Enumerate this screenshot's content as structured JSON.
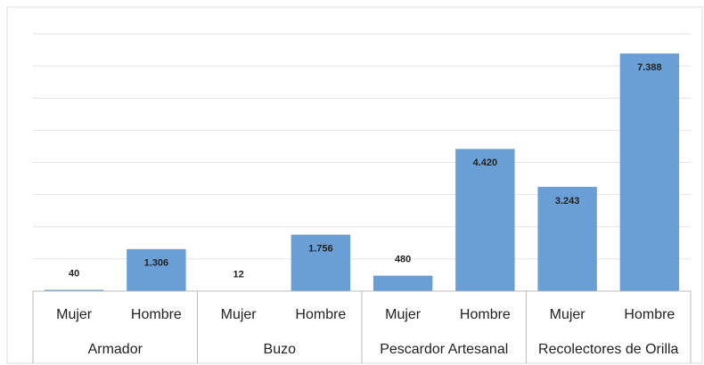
{
  "chart_data": {
    "type": "bar",
    "categories": [
      "Mujer",
      "Hombre",
      "Mujer",
      "Hombre",
      "Mujer",
      "Hombre",
      "Mujer",
      "Hombre"
    ],
    "groups": [
      "Armador",
      "Buzo",
      "Pescardor Artesanal",
      "Recolectores de Orilla"
    ],
    "values": [
      40,
      1306,
      12,
      1756,
      480,
      4420,
      3243,
      7388
    ],
    "value_labels": [
      "40",
      "1.306",
      "12",
      "1.756",
      "480",
      "4.420",
      "3.243",
      "7.388"
    ],
    "color": "#6a9fd6",
    "ylim": [
      0,
      8000
    ],
    "yticks": [
      0,
      1000,
      2000,
      3000,
      4000,
      5000,
      6000,
      7000,
      8000
    ],
    "grid": true
  }
}
